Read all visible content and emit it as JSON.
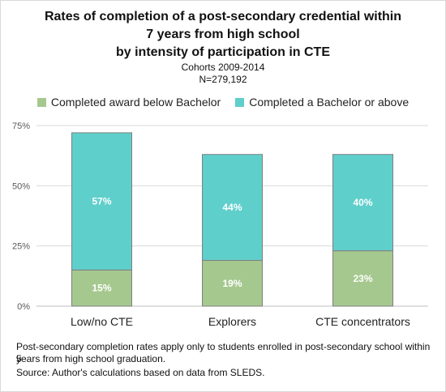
{
  "chart_data": {
    "type": "bar",
    "stacked": true,
    "title_lines": [
      "Rates of completion of a post-secondary credential within",
      "7 years from high school",
      "by intensity of participation in CTE"
    ],
    "subtitle_lines": [
      "Cohorts 2009-2014",
      "N=279,192"
    ],
    "categories": [
      "Low/no CTE",
      "Explorers",
      "CTE concentrators"
    ],
    "series": [
      {
        "name": "Completed award below Bachelor",
        "values": [
          15,
          19,
          23
        ],
        "labels": [
          "15%",
          "19%",
          "23%"
        ],
        "color": "#a5c88f"
      },
      {
        "name": "Completed a Bachelor or above",
        "values": [
          57,
          44,
          40
        ],
        "labels": [
          "57%",
          "44%",
          "40%"
        ],
        "color": "#5fcfcb"
      }
    ],
    "y_ticks": [
      0,
      25,
      50,
      75
    ],
    "y_tick_labels": [
      "0%",
      "25%",
      "50%",
      "75%"
    ],
    "ylim": [
      0,
      75
    ],
    "grid": true,
    "legend_position": "top",
    "notes": [
      "Post-secondary completion rates apply only to students enrolled in post-secondary school within 5",
      "years from high school graduation.",
      "Source: Author's calculations based on data from SLEDS."
    ]
  }
}
